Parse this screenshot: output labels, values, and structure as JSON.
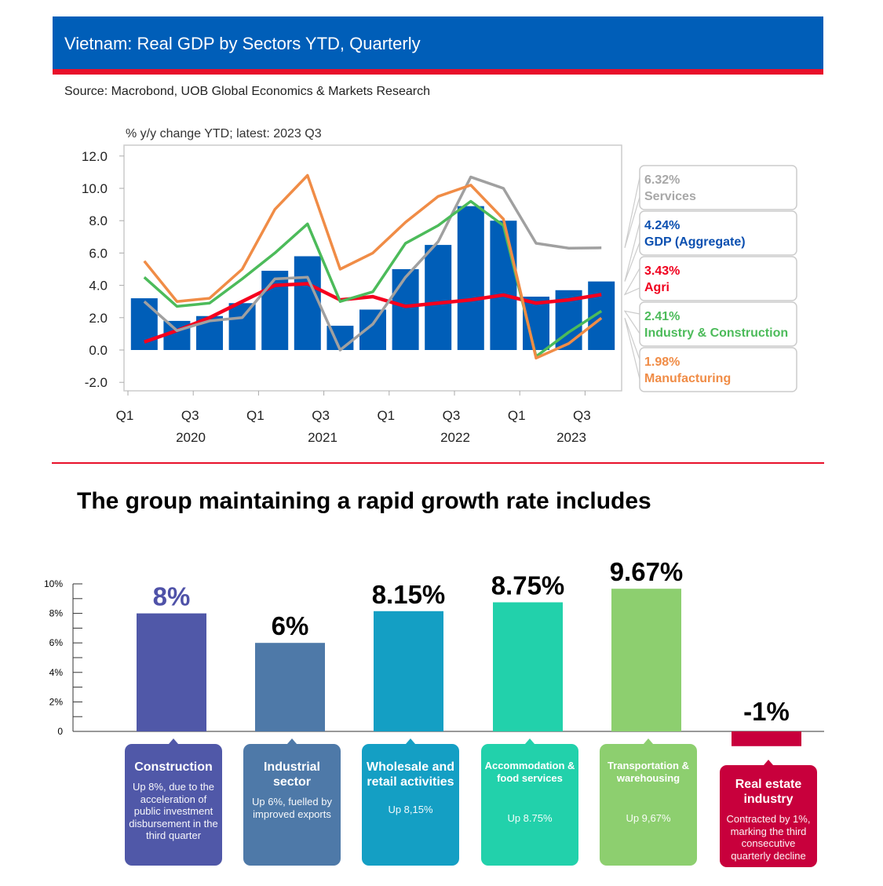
{
  "header": {
    "title": "Vietnam: Real GDP by Sectors YTD, Quarterly",
    "source": "Source: Macrobond, UOB Global Economics & Markets Research"
  },
  "chart_data": [
    {
      "type": "bar+line",
      "subtitle": "% y/y change YTD; latest: 2023 Q3",
      "x": [
        "2020 Q1",
        "2020 Q2",
        "2020 Q3",
        "2020 Q4",
        "2021 Q1",
        "2021 Q2",
        "2021 Q3",
        "2021 Q4",
        "2022 Q1",
        "2022 Q2",
        "2022 Q3",
        "2022 Q4",
        "2023 Q1",
        "2023 Q2",
        "2023 Q3"
      ],
      "x_tick_labels": [
        "Q1",
        "Q3",
        "Q1",
        "Q3",
        "Q1",
        "Q3",
        "Q1",
        "Q3"
      ],
      "year_labels": [
        "2020",
        "2021",
        "2022",
        "2023"
      ],
      "y_ticks": [
        "12.0",
        "10.0",
        "8.0",
        "6.0",
        "4.0",
        "2.0",
        "0.0",
        "-2.0"
      ],
      "ylim": [
        -2.8,
        12.6
      ],
      "grid": false,
      "legend_placement": "right",
      "series": [
        {
          "name": "GDP (Aggregate)",
          "kind": "bar",
          "color": "#005eb8",
          "latest": "4.24%",
          "values": [
            3.2,
            1.8,
            2.1,
            2.9,
            4.9,
            5.8,
            1.5,
            2.5,
            5.0,
            6.5,
            8.9,
            8.0,
            3.3,
            3.7,
            4.24
          ]
        },
        {
          "name": "Services",
          "kind": "line",
          "color": "#a0a0a0",
          "latest": "6.32%",
          "values": [
            3.0,
            1.2,
            1.8,
            2.0,
            4.4,
            4.5,
            0.0,
            1.6,
            4.5,
            6.7,
            10.7,
            10.0,
            6.6,
            6.3,
            6.32
          ]
        },
        {
          "name": "Agri",
          "kind": "line",
          "color": "#f5001e",
          "latest": "3.43%",
          "values": [
            0.5,
            1.2,
            2.0,
            3.0,
            4.0,
            4.1,
            3.1,
            3.3,
            2.7,
            2.9,
            3.1,
            3.4,
            2.9,
            3.1,
            3.43
          ]
        },
        {
          "name": "Industry & Construction",
          "kind": "line",
          "color": "#4cbb5a",
          "latest": "2.41%",
          "values": [
            4.5,
            2.7,
            2.9,
            4.4,
            6.0,
            7.8,
            3.0,
            3.6,
            6.6,
            7.7,
            9.2,
            7.7,
            -0.4,
            1.1,
            2.41
          ]
        },
        {
          "name": "Manufacturing",
          "kind": "line",
          "color": "#f08c46",
          "latest": "1.98%",
          "values": [
            5.5,
            3.0,
            3.2,
            5.0,
            8.7,
            10.8,
            5.0,
            6.0,
            7.9,
            9.5,
            10.2,
            8.1,
            -0.5,
            0.4,
            1.98
          ]
        }
      ],
      "legend_order": [
        "Services",
        "GDP (Aggregate)",
        "Agri",
        "Industry & Construction",
        "Manufacturing"
      ],
      "legend_colors": [
        "#a8a8a8",
        "#0a4fb0",
        "#f0001e",
        "#4cbb5a",
        "#f08c46"
      ]
    },
    {
      "type": "bar",
      "title": "The group maintaining a rapid growth rate includes",
      "y_ticks": [
        "10%",
        "8%",
        "6%",
        "4%",
        "2%",
        "0"
      ],
      "ylim": [
        -1,
        10
      ],
      "categories": [
        "Construction",
        "Industrial sector",
        "Wholesale and retail activities",
        "Accommodation & food services",
        "Transportation & warehousing",
        "Real estate industry"
      ],
      "values": [
        8,
        6,
        8.15,
        8.75,
        9.67,
        -1
      ],
      "data_labels": [
        "8%",
        "6%",
        "8.15%",
        "8.75%",
        "9.67%",
        "-1%"
      ],
      "label_colors": [
        "#4f52a8",
        "#000000",
        "#000000",
        "#000000",
        "#000000",
        "#000000"
      ],
      "colors": [
        "#5058a8",
        "#4e79a8",
        "#149fc4",
        "#22d1ab",
        "#8dcf6f",
        "#c8003c"
      ],
      "descriptions": [
        "Up 8%, due to the acceleration of public investment disbursement in the third quarter",
        "Up 6%, fuelled by improved exports",
        "Up 8,15%",
        "Up 8.75%",
        "Up 9,67%",
        "Contracted by 1%, marking the third consecutive quarterly decline"
      ]
    }
  ]
}
